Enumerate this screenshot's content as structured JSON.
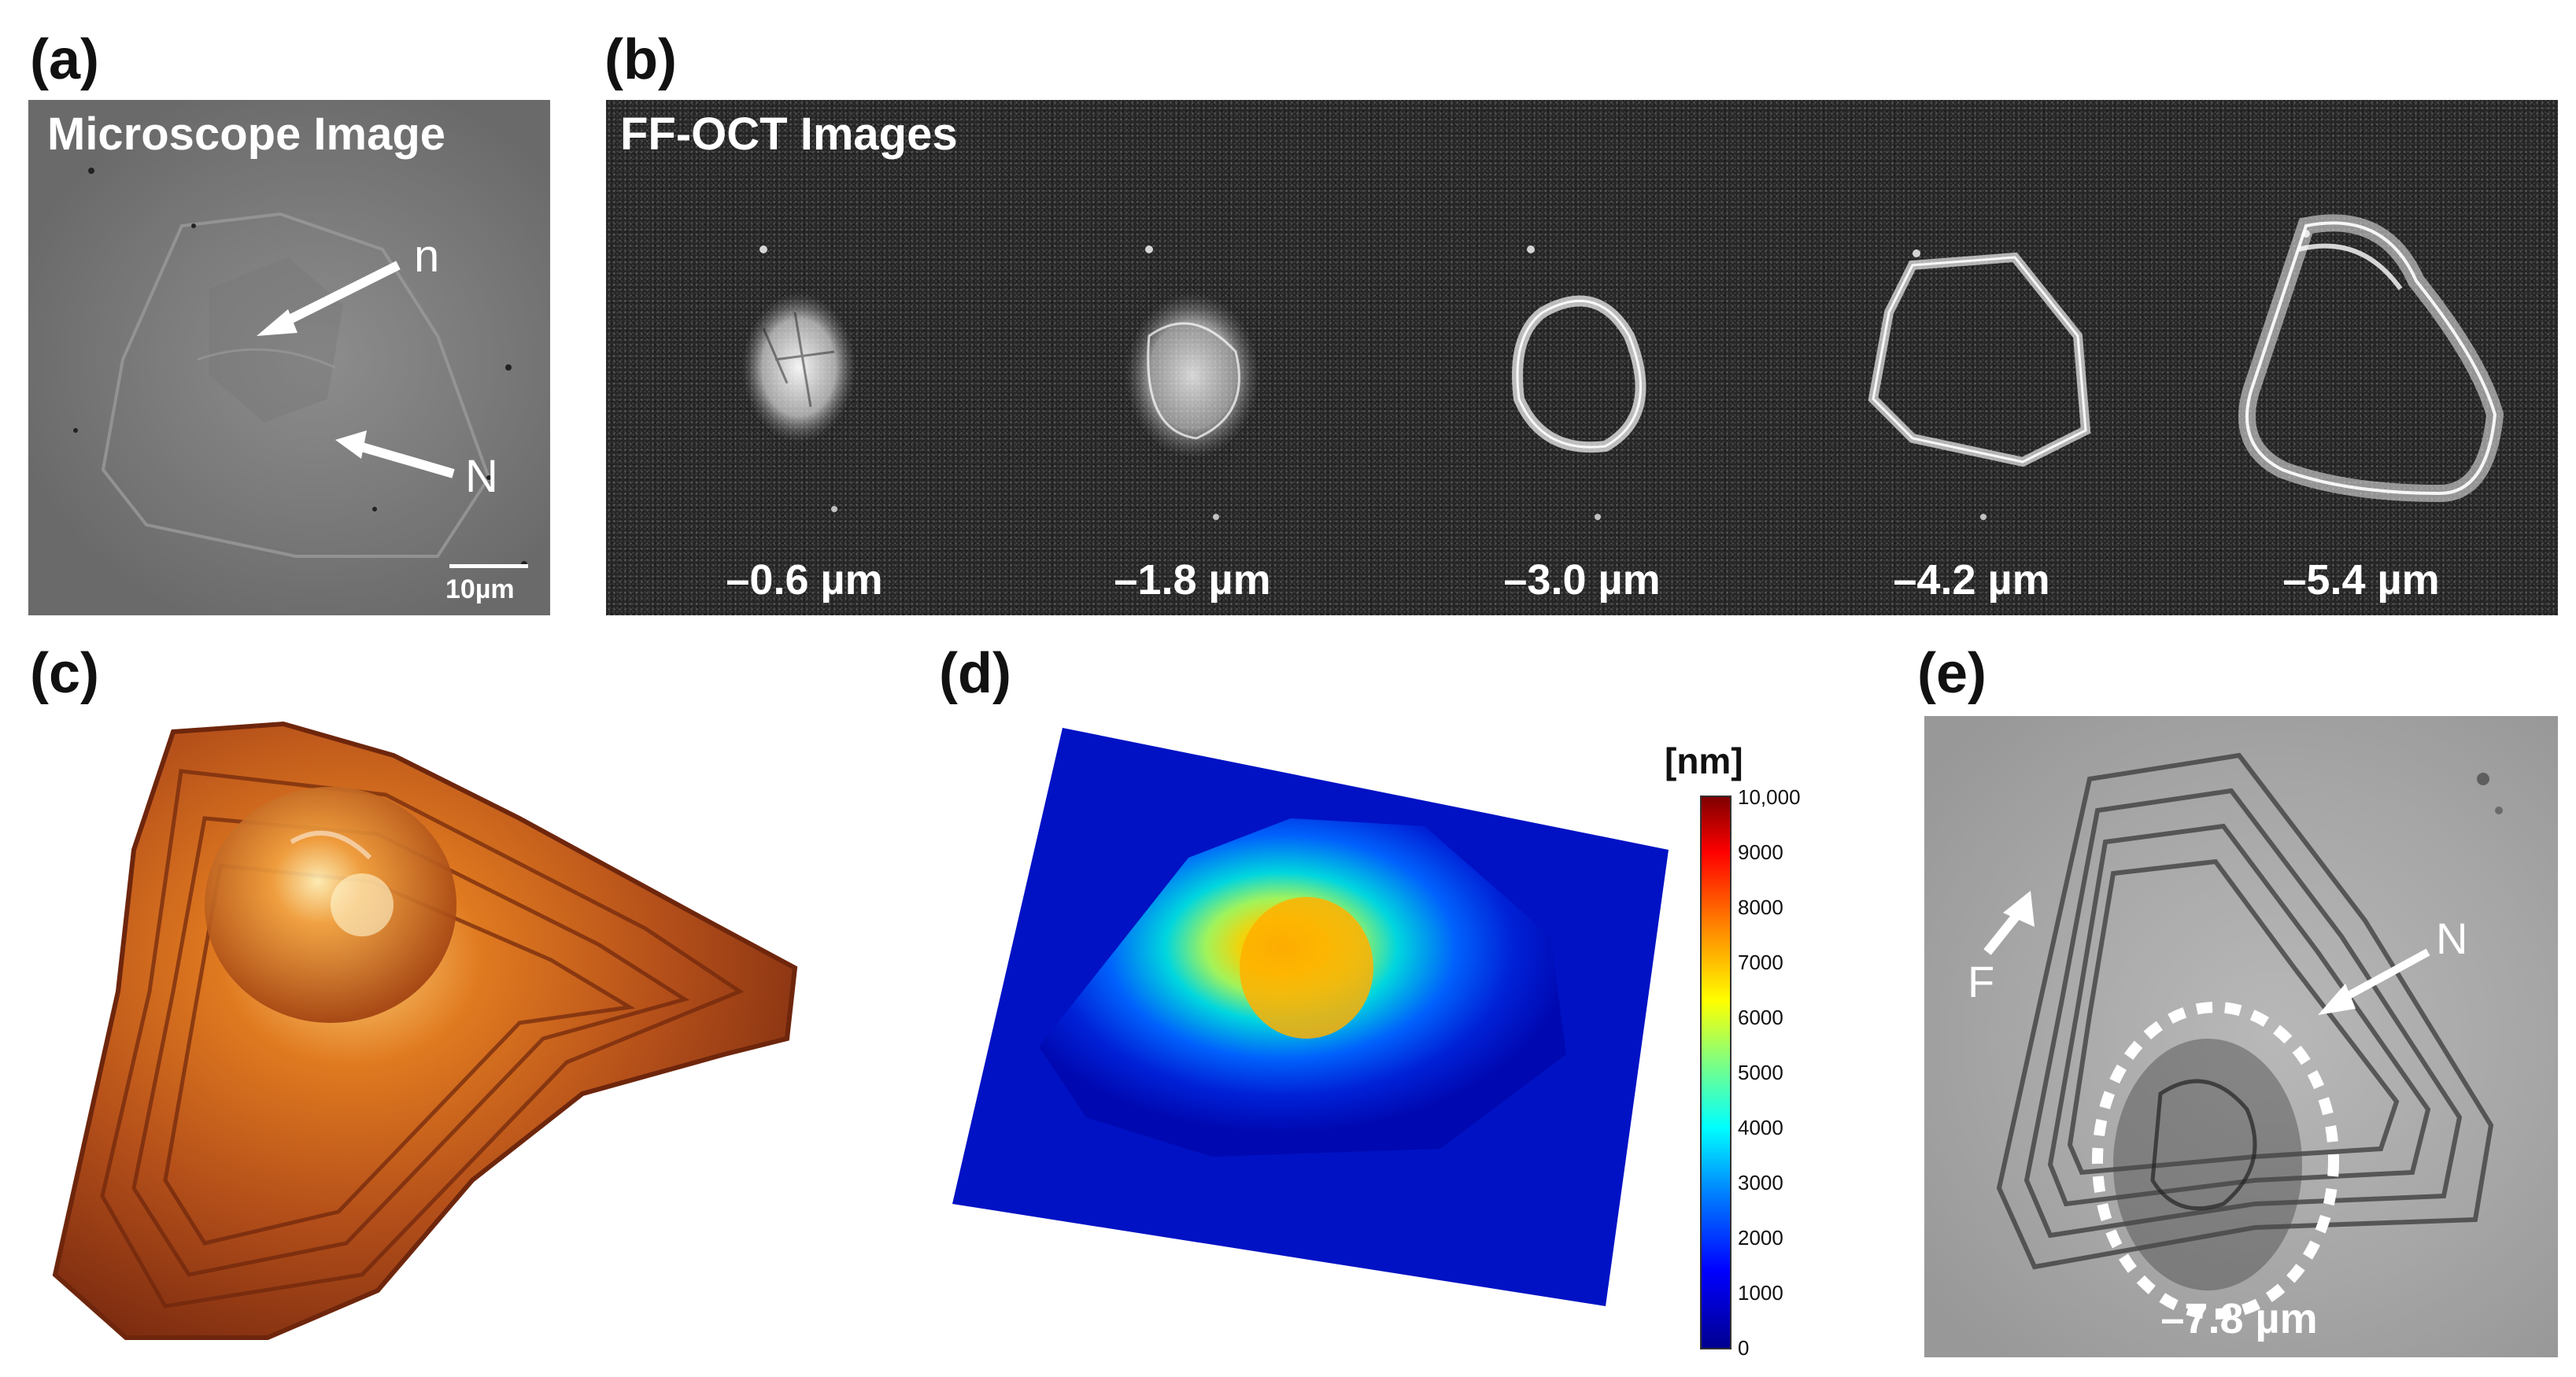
{
  "panels": {
    "a": {
      "label": "(a)",
      "title": "Microscope Image",
      "markers": [
        "n",
        "N"
      ],
      "scale_bar": "10µm"
    },
    "b": {
      "label": "(b)",
      "title": "FF-OCT Images",
      "depths": [
        "–0.6 µm",
        "–1.8 µm",
        "–3.0 µm",
        "–4.2 µm",
        "–5.4 µm"
      ]
    },
    "c": {
      "label": "(c)"
    },
    "d": {
      "label": "(d)",
      "colorbar": {
        "unit": "[nm]",
        "ticks": [
          "10,000",
          "9000",
          "8000",
          "7000",
          "6000",
          "5000",
          "4000",
          "3000",
          "2000",
          "1000",
          "0"
        ]
      }
    },
    "e": {
      "label": "(e)",
      "markers": [
        "F",
        "N"
      ],
      "depth": "–7.8 µm"
    }
  },
  "colors": {
    "surface_3d": "#a84410",
    "colormap": [
      "#00008f",
      "#0000ff",
      "#00ffff",
      "#ffff00",
      "#ff7f00",
      "#ff0000",
      "#7f0000"
    ]
  }
}
